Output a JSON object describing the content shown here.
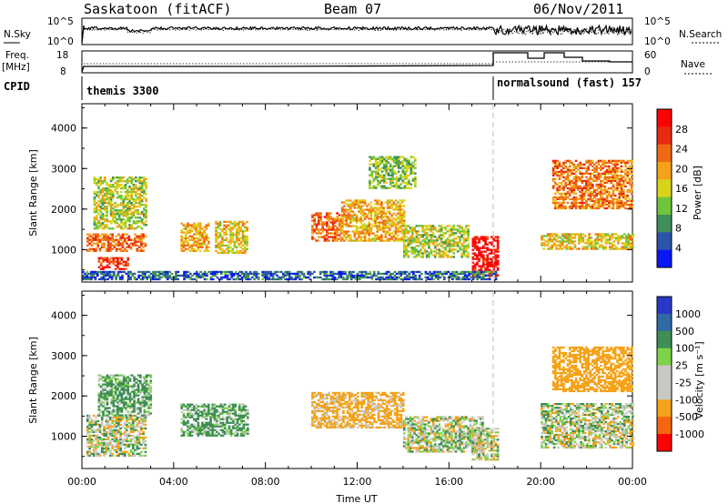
{
  "header": {
    "title": "Saskatoon (fitACF)",
    "beam": "Beam 07",
    "date": "06/Nov/2011"
  },
  "noise_panel": {
    "left_label": "N.Sky",
    "left_ticks": [
      "10^5",
      "10^0"
    ],
    "right_ticks": [
      "10^5",
      "10^0"
    ],
    "right_label": "N.Search"
  },
  "freq_panel": {
    "left_label_1": "Freq.",
    "left_label_2": "[MHz]",
    "left_ticks": [
      "18",
      "8"
    ],
    "right_ticks": [
      "60",
      "0"
    ],
    "right_label": "Nave"
  },
  "cpid": {
    "label": "CPID",
    "segments": [
      {
        "name": "themis 3300",
        "start_hour": 0.0
      },
      {
        "name": "normalsound (fast) 157",
        "start_hour": 18.0
      }
    ]
  },
  "axes": {
    "xlabel": "Time UT",
    "x_ticks": [
      "00:00",
      "04:00",
      "08:00",
      "12:00",
      "16:00",
      "20:00",
      "00:00"
    ],
    "ylabel": "Slant Range [km]",
    "y_ticks": [
      "1000",
      "2000",
      "3000",
      "4000"
    ]
  },
  "colors": {
    "power": [
      "#0a17f5",
      "#2a55a8",
      "#3f8f5a",
      "#6ec43b",
      "#d9d41b",
      "#f5a21a",
      "#f06a15",
      "#e82b10",
      "#ff0000"
    ],
    "velocity": [
      "#ff0000",
      "#f5660f",
      "#f5a31a",
      "#c9c9c4",
      "#c9c9c4",
      "#7ed34a",
      "#3e8e55",
      "#2f6aa6",
      "#2a38c8"
    ]
  },
  "chart_data": [
    {
      "type": "heatmap",
      "title": "",
      "xlabel": "Time UT",
      "ylabel": "Slant Range [km]",
      "xlim": [
        0,
        24
      ],
      "ylim": [
        200,
        4600
      ],
      "colorbar_label": "Power [dB]",
      "colorbar_ticks": [
        "4",
        "8",
        "12",
        "16",
        "20",
        "24",
        "28"
      ],
      "scale": [
        0,
        30
      ],
      "regions": [
        {
          "t": [
            0.2,
            2.8
          ],
          "r": [
            950,
            1400
          ],
          "value": 22
        },
        {
          "t": [
            0.7,
            2.0
          ],
          "r": [
            500,
            800
          ],
          "value": 25
        },
        {
          "t": [
            0.5,
            2.8
          ],
          "r": [
            1500,
            2800
          ],
          "value": 14
        },
        {
          "t": [
            4.3,
            5.5
          ],
          "r": [
            950,
            1650
          ],
          "value": 18
        },
        {
          "t": [
            5.8,
            7.2
          ],
          "r": [
            900,
            1700
          ],
          "value": 16
        },
        {
          "t": [
            10.0,
            11.3
          ],
          "r": [
            1200,
            1900
          ],
          "value": 22
        },
        {
          "t": [
            11.3,
            14.0
          ],
          "r": [
            1200,
            2200
          ],
          "value": 18
        },
        {
          "t": [
            14.0,
            16.8
          ],
          "r": [
            800,
            1600
          ],
          "value": 14
        },
        {
          "t": [
            12.5,
            14.5
          ],
          "r": [
            2500,
            3300
          ],
          "value": 12
        },
        {
          "t": [
            17.0,
            18.1
          ],
          "r": [
            300,
            1300
          ],
          "value": 28
        },
        {
          "t": [
            20.0,
            24.0
          ],
          "r": [
            1000,
            1400
          ],
          "value": 16
        },
        {
          "t": [
            20.5,
            24.0
          ],
          "r": [
            2000,
            3200
          ],
          "value": 21
        },
        {
          "t": [
            0.0,
            18.0
          ],
          "r": [
            250,
            450
          ],
          "value": 6
        }
      ]
    },
    {
      "type": "heatmap",
      "title": "",
      "xlabel": "Time UT",
      "ylabel": "Slant Range [km]",
      "xlim": [
        0,
        24
      ],
      "ylim": [
        200,
        4600
      ],
      "colorbar_label": "Velocity [m s⁻¹]",
      "colorbar_ticks": [
        "1000",
        "500",
        "100",
        "25",
        "-25",
        "-100",
        "-500",
        "-1000"
      ],
      "regions": [
        {
          "t": [
            0.2,
            2.8
          ],
          "r": [
            500,
            1500
          ],
          "value": 0
        },
        {
          "t": [
            0.7,
            3.0
          ],
          "r": [
            1500,
            2500
          ],
          "value": 150
        },
        {
          "t": [
            4.3,
            7.2
          ],
          "r": [
            1000,
            1800
          ],
          "value": 150
        },
        {
          "t": [
            10.0,
            14.0
          ],
          "r": [
            1200,
            2100
          ],
          "value": -200
        },
        {
          "t": [
            14.0,
            17.5
          ],
          "r": [
            600,
            1500
          ],
          "value": 0
        },
        {
          "t": [
            17.0,
            18.1
          ],
          "r": [
            400,
            1200
          ],
          "value": 0
        },
        {
          "t": [
            20.0,
            24.0
          ],
          "r": [
            700,
            1800
          ],
          "value": 0
        },
        {
          "t": [
            20.5,
            24.0
          ],
          "r": [
            2100,
            3200
          ],
          "value": -300
        }
      ]
    }
  ]
}
